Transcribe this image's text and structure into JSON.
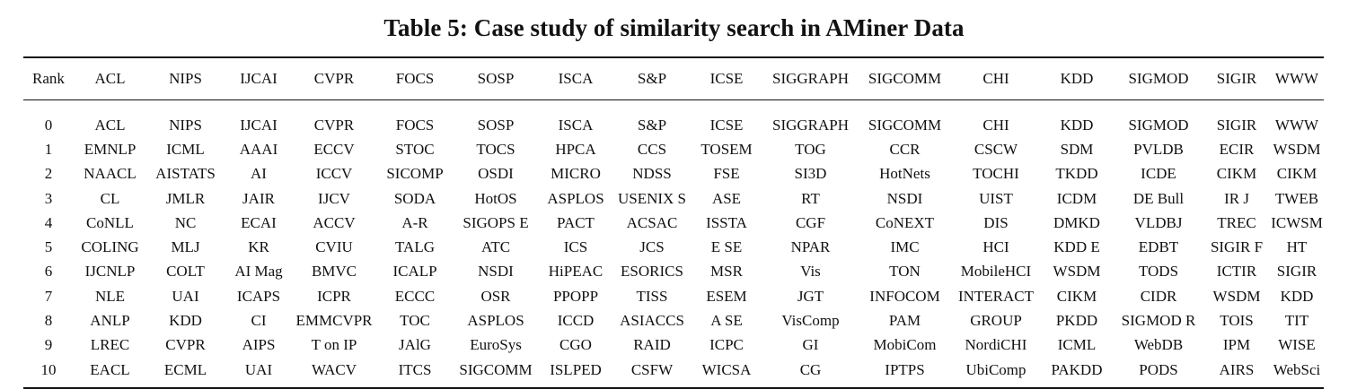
{
  "title": "Table 5: Case study of similarity search in AMiner Data",
  "columns": [
    "Rank",
    "ACL",
    "NIPS",
    "IJCAI",
    "CVPR",
    "FOCS",
    "SOSP",
    "ISCA",
    "S&P",
    "ICSE",
    "SIGGRAPH",
    "SIGCOMM",
    "CHI",
    "KDD",
    "SIGMOD",
    "SIGIR",
    "WWW"
  ],
  "rows": [
    [
      "0",
      "ACL",
      "NIPS",
      "IJCAI",
      "CVPR",
      "FOCS",
      "SOSP",
      "ISCA",
      "S&P",
      "ICSE",
      "SIGGRAPH",
      "SIGCOMM",
      "CHI",
      "KDD",
      "SIGMOD",
      "SIGIR",
      "WWW"
    ],
    [
      "1",
      "EMNLP",
      "ICML",
      "AAAI",
      "ECCV",
      "STOC",
      "TOCS",
      "HPCA",
      "CCS",
      "TOSEM",
      "TOG",
      "CCR",
      "CSCW",
      "SDM",
      "PVLDB",
      "ECIR",
      "WSDM"
    ],
    [
      "2",
      "NAACL",
      "AISTATS",
      "AI",
      "ICCV",
      "SICOMP",
      "OSDI",
      "MICRO",
      "NDSS",
      "FSE",
      "SI3D",
      "HotNets",
      "TOCHI",
      "TKDD",
      "ICDE",
      "CIKM",
      "CIKM"
    ],
    [
      "3",
      "CL",
      "JMLR",
      "JAIR",
      "IJCV",
      "SODA",
      "HotOS",
      "ASPLOS",
      "USENIX S",
      "ASE",
      "RT",
      "NSDI",
      "UIST",
      "ICDM",
      "DE Bull",
      "IR J",
      "TWEB"
    ],
    [
      "4",
      "CoNLL",
      "NC",
      "ECAI",
      "ACCV",
      "A-R",
      "SIGOPS E",
      "PACT",
      "ACSAC",
      "ISSTA",
      "CGF",
      "CoNEXT",
      "DIS",
      "DMKD",
      "VLDBJ",
      "TREC",
      "ICWSM"
    ],
    [
      "5",
      "COLING",
      "MLJ",
      "KR",
      "CVIU",
      "TALG",
      "ATC",
      "ICS",
      "JCS",
      "E SE",
      "NPAR",
      "IMC",
      "HCI",
      "KDD E",
      "EDBT",
      "SIGIR F",
      "HT"
    ],
    [
      "6",
      "IJCNLP",
      "COLT",
      "AI Mag",
      "BMVC",
      "ICALP",
      "NSDI",
      "HiPEAC",
      "ESORICS",
      "MSR",
      "Vis",
      "TON",
      "MobileHCI",
      "WSDM",
      "TODS",
      "ICTIR",
      "SIGIR"
    ],
    [
      "7",
      "NLE",
      "UAI",
      "ICAPS",
      "ICPR",
      "ECCC",
      "OSR",
      "PPOPP",
      "TISS",
      "ESEM",
      "JGT",
      "INFOCOM",
      "INTERACT",
      "CIKM",
      "CIDR",
      "WSDM",
      "KDD"
    ],
    [
      "8",
      "ANLP",
      "KDD",
      "CI",
      "EMMCVPR",
      "TOC",
      "ASPLOS",
      "ICCD",
      "ASIACCS",
      "A SE",
      "VisComp",
      "PAM",
      "GROUP",
      "PKDD",
      "SIGMOD R",
      "TOIS",
      "TIT"
    ],
    [
      "9",
      "LREC",
      "CVPR",
      "AIPS",
      "T on IP",
      "JAlG",
      "EuroSys",
      "CGO",
      "RAID",
      "ICPC",
      "GI",
      "MobiCom",
      "NordiCHI",
      "ICML",
      "WebDB",
      "IPM",
      "WISE"
    ],
    [
      "10",
      "EACL",
      "ECML",
      "UAI",
      "WACV",
      "ITCS",
      "SIGCOMM",
      "ISLPED",
      "CSFW",
      "WICSA",
      "CG",
      "IPTPS",
      "UbiComp",
      "PAKDD",
      "PODS",
      "AIRS",
      "WebSci"
    ]
  ]
}
